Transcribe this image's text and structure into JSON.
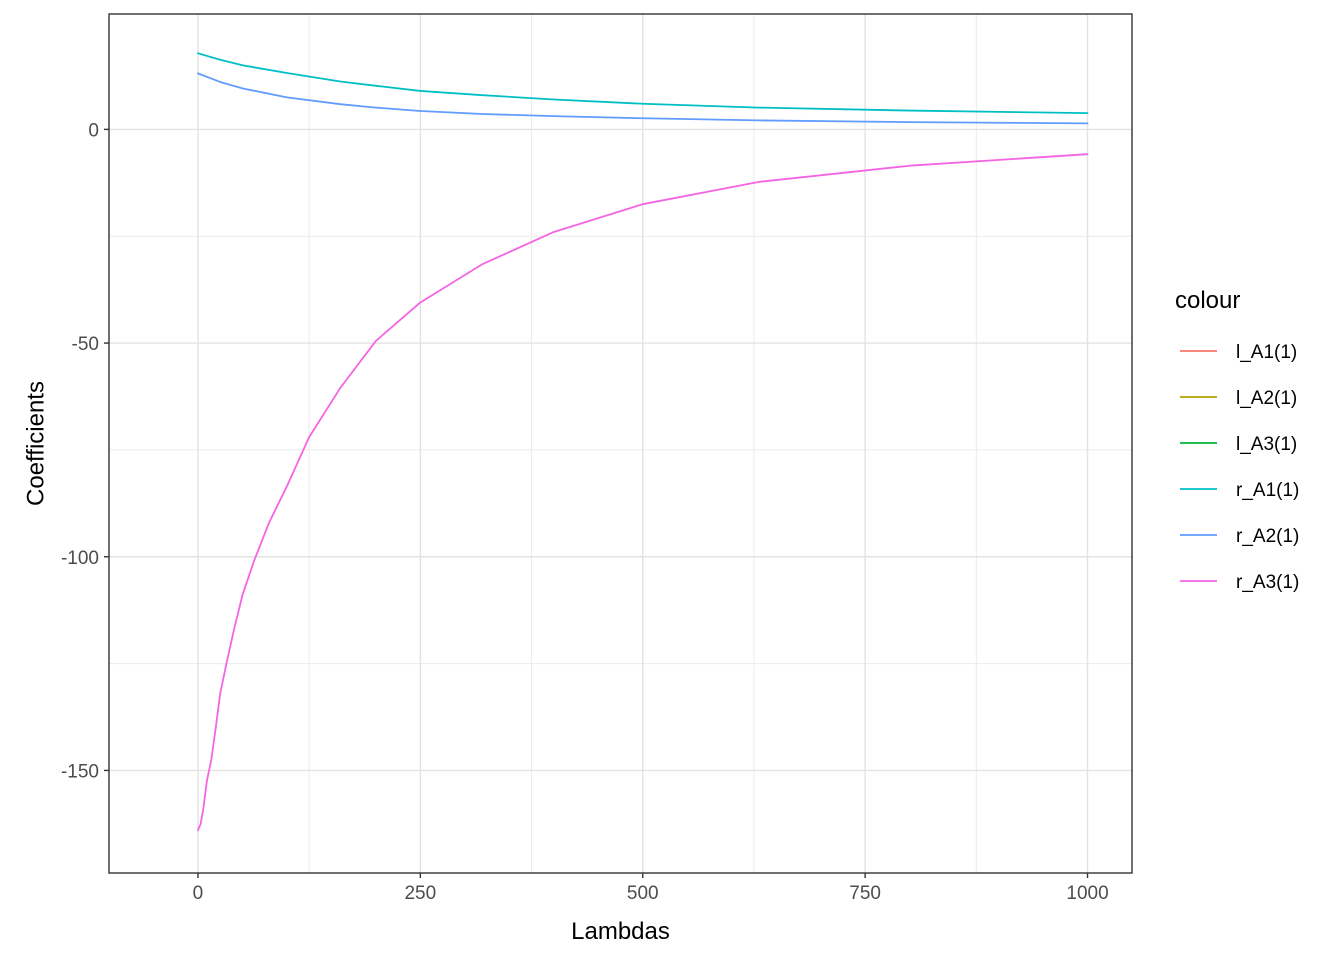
{
  "chart_data": {
    "type": "line",
    "xlabel": "Lambdas",
    "ylabel": "Coefficients",
    "xlim": [
      -100,
      1050
    ],
    "ylim": [
      -174,
      27
    ],
    "x_ticks": [
      0,
      250,
      500,
      750,
      1000
    ],
    "x_tick_labels": [
      "0",
      "250",
      "500",
      "750",
      "1000"
    ],
    "y_ticks": [
      0,
      -50,
      -100,
      -150
    ],
    "y_tick_labels": [
      "0",
      "-50",
      "-100",
      "-150"
    ],
    "grid": true,
    "legend": {
      "title": "colour",
      "placement": "right"
    },
    "series": [
      {
        "name": "l_A1(1)",
        "color": "#F8766D",
        "x": [],
        "y": []
      },
      {
        "name": "l_A2(1)",
        "color": "#B79F00",
        "x": [],
        "y": []
      },
      {
        "name": "l_A3(1)",
        "color": "#00BA38",
        "x": [],
        "y": []
      },
      {
        "name": "r_A1(1)",
        "color": "#00BFC4",
        "x": [
          0,
          25,
          50,
          100,
          160,
          200,
          250,
          320,
          400,
          500,
          630,
          800,
          1000
        ],
        "y": [
          17.8,
          16.3,
          15.0,
          13.2,
          11.2,
          10.2,
          9.0,
          8.0,
          7.0,
          6.0,
          5.1,
          4.4,
          3.8
        ]
      },
      {
        "name": "r_A2(1)",
        "color": "#619CFF",
        "x": [
          0,
          25,
          50,
          100,
          160,
          200,
          250,
          320,
          400,
          500,
          630,
          800,
          1000
        ],
        "y": [
          13.1,
          11.1,
          9.6,
          7.5,
          5.9,
          5.1,
          4.3,
          3.6,
          3.1,
          2.6,
          2.1,
          1.7,
          1.4
        ]
      },
      {
        "name": "r_A3(1)",
        "color": "#F564E3",
        "x": [
          0,
          3,
          6,
          10,
          15,
          20,
          25,
          32,
          40,
          50,
          63,
          80,
          100,
          125,
          160,
          200,
          250,
          320,
          400,
          500,
          630,
          800,
          1000
        ],
        "y": [
          -164.0,
          -162.5,
          -159.0,
          -152.5,
          -147.5,
          -140.0,
          -132.0,
          -125.0,
          -117.5,
          -109.0,
          -101.0,
          -92.0,
          -83.5,
          -72.0,
          -60.5,
          -49.5,
          -40.5,
          -31.5,
          -24.0,
          -17.5,
          -12.3,
          -8.5,
          -5.8
        ]
      }
    ]
  }
}
